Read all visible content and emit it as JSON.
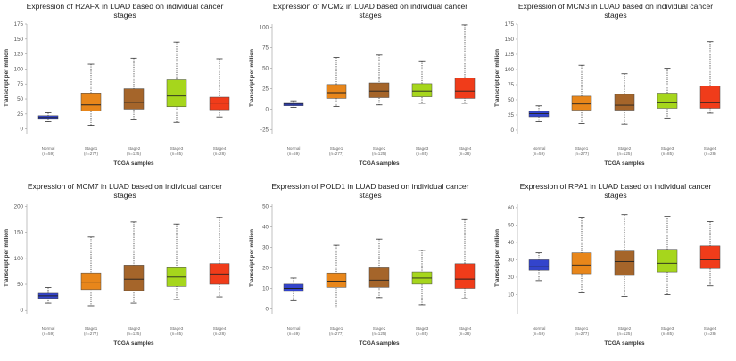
{
  "chart_data": [
    {
      "type": "boxplot",
      "title": "Expression of H2AFX in LUAD based on individual cancer stages",
      "xlabel": "TCGA samples",
      "ylabel": "Transcript per million",
      "ylim": [
        -5,
        175
      ],
      "yticks": [
        0,
        25,
        50,
        75,
        100,
        125,
        150,
        175
      ],
      "categories": [
        "Normal",
        "Stage1",
        "Stage2",
        "Stage3",
        "Stage4"
      ],
      "counts": [
        "(n=59)",
        "(n=277)",
        "(n=125)",
        "(n=85)",
        "(n=28)"
      ],
      "series": [
        {
          "name": "Normal",
          "min": 12,
          "q1": 16,
          "median": 19,
          "q3": 22,
          "max": 27,
          "color": "#3344cc"
        },
        {
          "name": "Stage1",
          "min": 6,
          "q1": 30,
          "median": 40,
          "q3": 60,
          "max": 108,
          "color": "#e8861a"
        },
        {
          "name": "Stage2",
          "min": 15,
          "q1": 33,
          "median": 44,
          "q3": 67,
          "max": 118,
          "color": "#a5652a"
        },
        {
          "name": "Stage3",
          "min": 11,
          "q1": 37,
          "median": 55,
          "q3": 82,
          "max": 145,
          "color": "#a6d61c"
        },
        {
          "name": "Stage4",
          "min": 20,
          "q1": 32,
          "median": 43,
          "q3": 53,
          "max": 117,
          "color": "#f03c1a"
        }
      ]
    },
    {
      "type": "boxplot",
      "title": "Expression of MCM2 in LUAD based on individual cancer stages",
      "xlabel": "TCGA samples",
      "ylabel": "Transcript per million",
      "ylim": [
        -28,
        104
      ],
      "yticks": [
        -25,
        0,
        25,
        50,
        75,
        100
      ],
      "categories": [
        "Normal",
        "Stage1",
        "Stage2",
        "Stage3",
        "Stage4"
      ],
      "counts": [
        "(n=59)",
        "(n=277)",
        "(n=125)",
        "(n=85)",
        "(n=28)"
      ],
      "series": [
        {
          "name": "Normal",
          "min": 2,
          "q1": 4,
          "median": 6,
          "q3": 8,
          "max": 10,
          "color": "#3344cc"
        },
        {
          "name": "Stage1",
          "min": 3,
          "q1": 13,
          "median": 20,
          "q3": 30,
          "max": 63,
          "color": "#e8861a"
        },
        {
          "name": "Stage2",
          "min": 5,
          "q1": 14,
          "median": 22,
          "q3": 32,
          "max": 66,
          "color": "#a5652a"
        },
        {
          "name": "Stage3",
          "min": 7,
          "q1": 15,
          "median": 22,
          "q3": 31,
          "max": 59,
          "color": "#a6d61c"
        },
        {
          "name": "Stage4",
          "min": 7,
          "q1": 13,
          "median": 22,
          "q3": 38,
          "max": 103,
          "color": "#f03c1a"
        }
      ]
    },
    {
      "type": "boxplot",
      "title": "Expression of MCM3 in LUAD based on individual cancer stages",
      "xlabel": "TCGA samples",
      "ylabel": "Transcript per million",
      "ylim": [
        -3,
        175
      ],
      "yticks": [
        0,
        25,
        50,
        75,
        100,
        125,
        150,
        175
      ],
      "categories": [
        "Normal",
        "Stage1",
        "Stage2",
        "Stage3",
        "Stage4"
      ],
      "counts": [
        "(n=59)",
        "(n=277)",
        "(n=125)",
        "(n=85)",
        "(n=28)"
      ],
      "series": [
        {
          "name": "Normal",
          "min": 14,
          "q1": 22,
          "median": 27,
          "q3": 31,
          "max": 40,
          "color": "#3344cc"
        },
        {
          "name": "Stage1",
          "min": 11,
          "q1": 33,
          "median": 43,
          "q3": 56,
          "max": 107,
          "color": "#e8861a"
        },
        {
          "name": "Stage2",
          "min": 10,
          "q1": 33,
          "median": 41,
          "q3": 59,
          "max": 93,
          "color": "#a5652a"
        },
        {
          "name": "Stage3",
          "min": 20,
          "q1": 36,
          "median": 46,
          "q3": 61,
          "max": 102,
          "color": "#a6d61c"
        },
        {
          "name": "Stage4",
          "min": 28,
          "q1": 36,
          "median": 46,
          "q3": 73,
          "max": 146,
          "color": "#f03c1a"
        }
      ]
    },
    {
      "type": "boxplot",
      "title": "Expression of MCM7 in LUAD based on individual cancer stages",
      "xlabel": "TCGA samples",
      "ylabel": "Transcript per million",
      "ylim": [
        -3,
        204
      ],
      "yticks": [
        0,
        50,
        100,
        150,
        200
      ],
      "categories": [
        "Normal",
        "Stage1",
        "Stage2",
        "Stage3",
        "Stage4"
      ],
      "counts": [
        "(n=59)",
        "(n=277)",
        "(n=125)",
        "(n=85)",
        "(n=28)"
      ],
      "series": [
        {
          "name": "Normal",
          "min": 14,
          "q1": 23,
          "median": 28,
          "q3": 33,
          "max": 44,
          "color": "#3344cc"
        },
        {
          "name": "Stage1",
          "min": 9,
          "q1": 40,
          "median": 53,
          "q3": 72,
          "max": 141,
          "color": "#e8861a"
        },
        {
          "name": "Stage2",
          "min": 14,
          "q1": 38,
          "median": 60,
          "q3": 87,
          "max": 170,
          "color": "#a5652a"
        },
        {
          "name": "Stage3",
          "min": 21,
          "q1": 46,
          "median": 64,
          "q3": 82,
          "max": 166,
          "color": "#a6d61c"
        },
        {
          "name": "Stage4",
          "min": 26,
          "q1": 50,
          "median": 70,
          "q3": 90,
          "max": 178,
          "color": "#f03c1a"
        }
      ]
    },
    {
      "type": "boxplot",
      "title": "Expression of POLD1 in LUAD based on individual cancer stages",
      "xlabel": "TCGA samples",
      "ylabel": "Transcript per million",
      "ylim": [
        -1.5,
        51
      ],
      "yticks": [
        0,
        10,
        20,
        30,
        40,
        50
      ],
      "categories": [
        "Normal",
        "Stage1",
        "Stage2",
        "Stage3",
        "Stage4"
      ],
      "counts": [
        "(n=59)",
        "(n=277)",
        "(n=125)",
        "(n=85)",
        "(n=28)"
      ],
      "series": [
        {
          "name": "Normal",
          "min": 4,
          "q1": 8.5,
          "median": 10,
          "q3": 12,
          "max": 15,
          "color": "#3344cc"
        },
        {
          "name": "Stage1",
          "min": 0.5,
          "q1": 10.5,
          "median": 13.5,
          "q3": 17.5,
          "max": 31,
          "color": "#e8861a"
        },
        {
          "name": "Stage2",
          "min": 5.5,
          "q1": 10.5,
          "median": 14,
          "q3": 20,
          "max": 34,
          "color": "#a5652a"
        },
        {
          "name": "Stage3",
          "min": 2,
          "q1": 12,
          "median": 15,
          "q3": 18,
          "max": 28.5,
          "color": "#a6d61c"
        },
        {
          "name": "Stage4",
          "min": 5,
          "q1": 10,
          "median": 14.5,
          "q3": 22,
          "max": 43.5,
          "color": "#f03c1a"
        }
      ]
    },
    {
      "type": "boxplot",
      "title": "Expression of RPA1 in LUAD based on individual cancer stages",
      "xlabel": "TCGA samples",
      "ylabel": "Transcript per million",
      "ylim": [
        0,
        62
      ],
      "yticks": [
        10,
        20,
        30,
        40,
        50,
        60
      ],
      "categories": [
        "Normal",
        "Stage1",
        "Stage2",
        "Stage3",
        "Stage4"
      ],
      "counts": [
        "(n=59)",
        "(n=277)",
        "(n=125)",
        "(n=85)",
        "(n=28)"
      ],
      "series": [
        {
          "name": "Normal",
          "min": 18,
          "q1": 24,
          "median": 26,
          "q3": 30,
          "max": 34,
          "color": "#3344cc"
        },
        {
          "name": "Stage1",
          "min": 11,
          "q1": 22,
          "median": 27,
          "q3": 34,
          "max": 54,
          "color": "#e8861a"
        },
        {
          "name": "Stage2",
          "min": 9,
          "q1": 21,
          "median": 29,
          "q3": 35,
          "max": 56,
          "color": "#a5652a"
        },
        {
          "name": "Stage3",
          "min": 10,
          "q1": 23,
          "median": 28,
          "q3": 36,
          "max": 55,
          "color": "#a6d61c"
        },
        {
          "name": "Stage4",
          "min": 15,
          "q1": 25,
          "median": 30,
          "q3": 38,
          "max": 52,
          "color": "#f03c1a"
        }
      ]
    }
  ]
}
